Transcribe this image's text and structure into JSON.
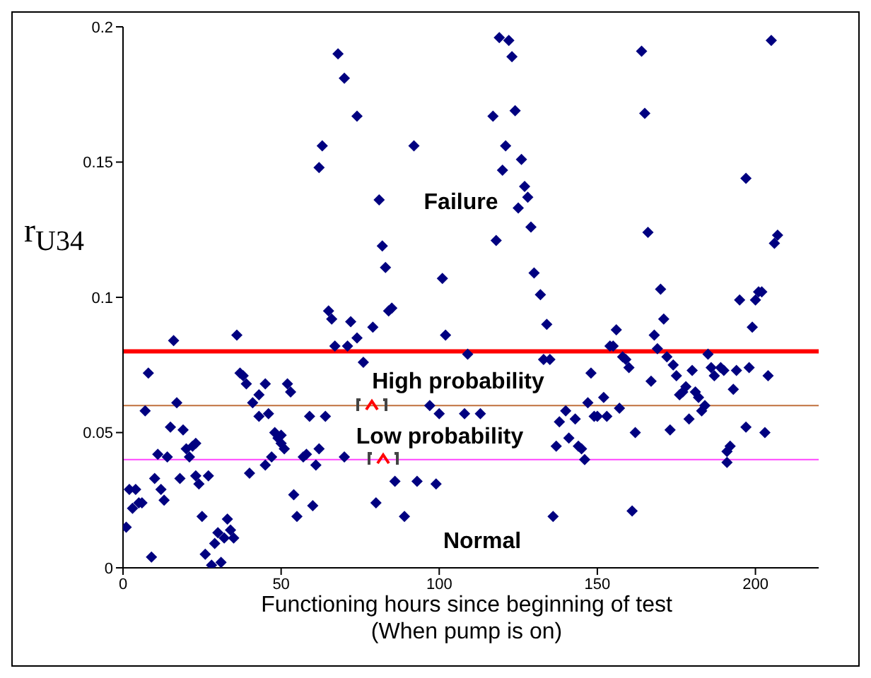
{
  "chart_data": {
    "type": "scatter",
    "xlabel": "Functioning hours since beginning of test\n(When pump is on)",
    "ylabel": "r$_{U34}$",
    "xlim": [
      0,
      220
    ],
    "xticks": [
      0,
      50,
      100,
      150,
      200
    ],
    "ylim": [
      0,
      0.2
    ],
    "yticks": [
      0,
      0.05,
      0.1,
      0.15,
      0.2
    ],
    "grid": false,
    "legend": false,
    "marker": "diamond",
    "series": [
      {
        "color": "#000080",
        "x": [
          1,
          2,
          4,
          3,
          5,
          6,
          8,
          7,
          9,
          10,
          11,
          12,
          13,
          14,
          15,
          16,
          17,
          18,
          19,
          20,
          21,
          22,
          23,
          23,
          24,
          25,
          26,
          27,
          29,
          28,
          30,
          31,
          32,
          33,
          34,
          35,
          36,
          37,
          38,
          39,
          40,
          41,
          43,
          43,
          45,
          45,
          46,
          47,
          48,
          49,
          50,
          50,
          51,
          52,
          53,
          54,
          55,
          57,
          58,
          59,
          60,
          61,
          62,
          64,
          65,
          66,
          67,
          70,
          71,
          72,
          74,
          76,
          79,
          80,
          84,
          85,
          86,
          89,
          93,
          99,
          102,
          109,
          97,
          100,
          108,
          68,
          70,
          74,
          63,
          92,
          62,
          81,
          82,
          83,
          101,
          119,
          122,
          123,
          164,
          205,
          117,
          124,
          165,
          121,
          126,
          120,
          197,
          127,
          128,
          125,
          129,
          118,
          166,
          207,
          206,
          130,
          132,
          134,
          133,
          135,
          148,
          170,
          171,
          168,
          169,
          156,
          154,
          155,
          158,
          159,
          160,
          195,
          201,
          202,
          200,
          199,
          185,
          172,
          174,
          175,
          167,
          180,
          186,
          189,
          190,
          187,
          194,
          198,
          204,
          193,
          178,
          177,
          176,
          181,
          182,
          184,
          183,
          179,
          147,
          152,
          140,
          138,
          143,
          149,
          150,
          153,
          157,
          162,
          173,
          197,
          203,
          141,
          137,
          144,
          145,
          146,
          191,
          192,
          191,
          136,
          161,
          113
        ],
        "values": [
          0.015,
          0.029,
          0.029,
          0.022,
          0.024,
          0.024,
          0.072,
          0.058,
          0.004,
          0.033,
          0.042,
          0.029,
          0.025,
          0.041,
          0.052,
          0.084,
          0.061,
          0.033,
          0.051,
          0.044,
          0.041,
          0.045,
          0.046,
          0.034,
          0.031,
          0.019,
          0.005,
          0.034,
          0.009,
          0.001,
          0.013,
          0.002,
          0.011,
          0.018,
          0.014,
          0.011,
          0.086,
          0.072,
          0.071,
          0.068,
          0.035,
          0.061,
          0.056,
          0.064,
          0.068,
          0.038,
          0.057,
          0.041,
          0.05,
          0.048,
          0.049,
          0.046,
          0.044,
          0.068,
          0.065,
          0.027,
          0.019,
          0.041,
          0.042,
          0.056,
          0.023,
          0.038,
          0.044,
          0.056,
          0.095,
          0.092,
          0.082,
          0.041,
          0.082,
          0.091,
          0.085,
          0.076,
          0.089,
          0.024,
          0.095,
          0.096,
          0.032,
          0.019,
          0.032,
          0.031,
          0.086,
          0.079,
          0.06,
          0.057,
          0.057,
          0.19,
          0.181,
          0.167,
          0.156,
          0.156,
          0.148,
          0.136,
          0.119,
          0.111,
          0.107,
          0.196,
          0.195,
          0.189,
          0.191,
          0.195,
          0.167,
          0.169,
          0.168,
          0.156,
          0.151,
          0.147,
          0.144,
          0.141,
          0.137,
          0.133,
          0.126,
          0.121,
          0.124,
          0.123,
          0.12,
          0.109,
          0.101,
          0.09,
          0.077,
          0.077,
          0.072,
          0.103,
          0.092,
          0.086,
          0.081,
          0.088,
          0.082,
          0.082,
          0.078,
          0.077,
          0.074,
          0.099,
          0.102,
          0.102,
          0.099,
          0.089,
          0.079,
          0.078,
          0.075,
          0.071,
          0.069,
          0.073,
          0.074,
          0.074,
          0.073,
          0.071,
          0.073,
          0.074,
          0.071,
          0.066,
          0.067,
          0.065,
          0.064,
          0.065,
          0.063,
          0.06,
          0.058,
          0.055,
          0.061,
          0.063,
          0.058,
          0.054,
          0.055,
          0.056,
          0.056,
          0.056,
          0.059,
          0.05,
          0.051,
          0.052,
          0.05,
          0.048,
          0.045,
          0.045,
          0.044,
          0.04,
          0.043,
          0.045,
          0.039,
          0.019,
          0.021,
          0.057
        ]
      }
    ],
    "ref_lines": [
      {
        "axis": "y",
        "value": 0.08,
        "color": "#ff0000"
      },
      {
        "axis": "y",
        "value": 0.06,
        "color": "#c0703c"
      },
      {
        "axis": "y",
        "value": 0.04,
        "color": "#ff44ff"
      }
    ],
    "annotations": [
      "Failure",
      "High probability",
      "Low probability",
      "Normal"
    ]
  }
}
